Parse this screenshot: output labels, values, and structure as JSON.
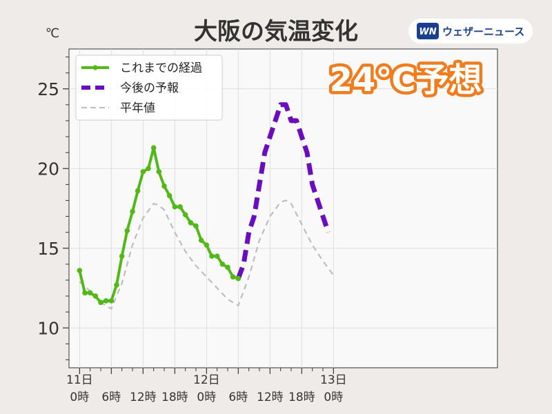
{
  "header": {
    "title": "大阪の気温変化",
    "unit": "℃",
    "brand": "ウェザーニュース",
    "brand_logo_text": "WN",
    "callout": "24℃予想"
  },
  "colors": {
    "background": "#efebe9",
    "plot_background": "#faf9f9",
    "observed": "#52b81a",
    "forecast": "#6a0dbd",
    "normal": "#bdbdbd",
    "callout": "#ef7d1f",
    "brand": "#1a3f8f"
  },
  "chart_data": {
    "type": "line",
    "title": "大阪の気温変化",
    "ylabel": "℃",
    "ylim": [
      7.5,
      27.5
    ],
    "xlim": [
      -2,
      79
    ],
    "yticks": [
      10,
      15,
      20,
      25
    ],
    "grid": true,
    "legend": {
      "placement": "top-left",
      "entries": [
        "これまでの経過",
        "今後の予報",
        "平年値"
      ]
    },
    "x_unit": "hours since 11日 0時",
    "xticks": [
      {
        "x": 0,
        "date": "11日",
        "time": "0時"
      },
      {
        "x": 6,
        "date": "",
        "time": "6時"
      },
      {
        "x": 12,
        "date": "",
        "time": "12時"
      },
      {
        "x": 18,
        "date": "",
        "time": "18時"
      },
      {
        "x": 24,
        "date": "12日",
        "time": "0時"
      },
      {
        "x": 30,
        "date": "",
        "time": "6時"
      },
      {
        "x": 36,
        "date": "",
        "time": "12時"
      },
      {
        "x": 42,
        "date": "",
        "time": "18時"
      },
      {
        "x": 48,
        "date": "13日",
        "time": "0時"
      }
    ],
    "series": [
      {
        "name": "これまでの経過",
        "style": "solid-markers",
        "x": [
          0,
          1,
          2,
          3,
          4,
          5,
          6,
          7,
          8,
          9,
          10,
          11,
          12,
          13,
          14,
          15,
          16,
          17,
          18,
          19,
          20,
          21,
          22,
          23,
          24,
          25,
          26,
          27,
          28,
          29,
          30
        ],
        "y": [
          13.6,
          12.2,
          12.2,
          12.0,
          11.6,
          11.7,
          11.7,
          12.7,
          14.5,
          16.1,
          17.3,
          18.6,
          19.8,
          20.0,
          21.3,
          19.8,
          18.9,
          18.3,
          17.6,
          17.6,
          17.1,
          16.6,
          16.4,
          15.5,
          15.2,
          14.5,
          14.5,
          14.0,
          13.8,
          13.2,
          13.1
        ]
      },
      {
        "name": "今後の予報",
        "style": "dashed-bold",
        "x": [
          30,
          31,
          32,
          33,
          34,
          35,
          36,
          37,
          38,
          39,
          40,
          41,
          42,
          43,
          44,
          45,
          46,
          47
        ],
        "y": [
          13.1,
          14.0,
          16.0,
          17.0,
          19.0,
          21.0,
          22.0,
          23.0,
          24.0,
          24.0,
          23.0,
          23.0,
          22.0,
          21.0,
          19.0,
          18.0,
          17.0,
          16.0
        ]
      },
      {
        "name": "平年値",
        "style": "dashed-thin",
        "x": [
          0,
          2,
          4,
          6,
          8,
          10,
          12,
          14,
          15,
          16,
          18,
          20,
          22,
          24,
          26,
          28,
          30,
          32,
          34,
          36,
          38,
          39,
          40,
          42,
          44,
          46,
          48
        ],
        "y": [
          12.9,
          12.3,
          11.6,
          11.2,
          12.8,
          15.2,
          16.9,
          17.8,
          17.7,
          17.4,
          16.0,
          14.8,
          13.9,
          13.2,
          12.5,
          11.8,
          11.4,
          13.2,
          15.5,
          17.0,
          17.9,
          18.0,
          17.8,
          16.5,
          15.2,
          14.2,
          13.3
        ]
      }
    ]
  }
}
